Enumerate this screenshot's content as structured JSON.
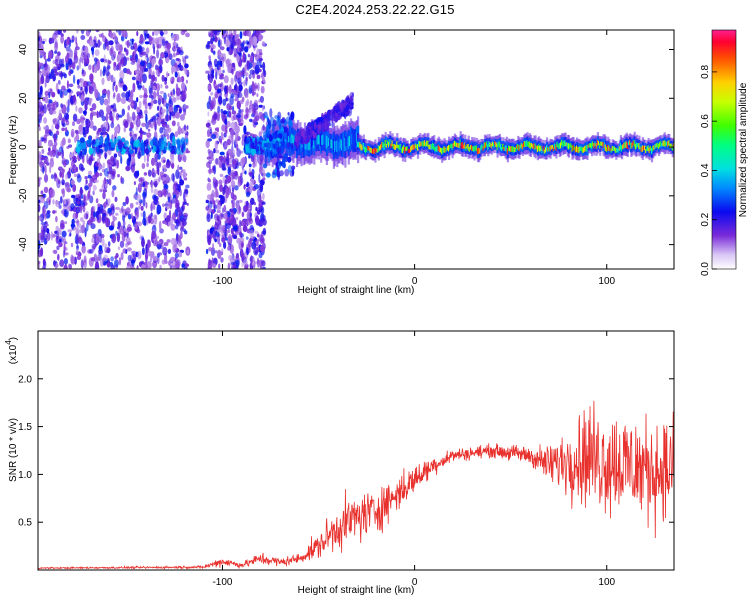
{
  "title": "C2E4.2024.253.22.22.G15",
  "chart_data": [
    {
      "type": "heatmap",
      "xlabel": "Height of straight line (km)",
      "ylabel": "Frequency (Hz)",
      "xlim": [
        -196,
        135
      ],
      "ylim": [
        -50,
        48
      ],
      "xticks": [
        -100,
        0,
        100
      ],
      "yticks": [
        -40,
        -20,
        0,
        20,
        40
      ],
      "colorbar": {
        "label": "Normalized spectral amplitude",
        "range": [
          0.0,
          0.97
        ],
        "ticks": [
          "0.0",
          "0.2",
          "0.4",
          "0.6",
          "0.8"
        ]
      },
      "regions": [
        {
          "x_range": [
            -196,
            -118
          ],
          "description_level": "scattered low amplitude noise, 0.1-0.25"
        },
        {
          "x_range": [
            -118,
            -108
          ],
          "description_level": "no signal"
        },
        {
          "x_range": [
            -108,
            -78
          ],
          "description_level": "dense low amplitude noise, 0.1-0.25"
        },
        {
          "x_range": [
            -78,
            -30
          ],
          "center_freq": 2,
          "band_halfwidth": 8,
          "peak_amplitude": 0.45
        },
        {
          "x_range": [
            -30,
            135
          ],
          "center_freq": 0,
          "band_halfwidth": 4,
          "peak_amplitude": 0.95
        }
      ]
    },
    {
      "type": "line",
      "xlabel": "Height of straight line (km)",
      "ylabel": "SNR (10 * v/v)",
      "multiplier": "(x10",
      "multiplier_exp": "4",
      "multiplier_close": ")",
      "xlim": [
        -196,
        135
      ],
      "ylim": [
        0,
        2.5
      ],
      "xticks": [
        -100,
        0,
        100
      ],
      "yticks": [
        0.5,
        1.0,
        1.5,
        2.0
      ],
      "ytick_labels": [
        "0.5",
        "1.0",
        "1.5",
        "2.0"
      ],
      "color": "#e8302c",
      "envelope": [
        {
          "x": -196,
          "mean": 0.02,
          "spread": 0.01
        },
        {
          "x": -110,
          "mean": 0.03,
          "spread": 0.02
        },
        {
          "x": -100,
          "mean": 0.09,
          "spread": 0.08
        },
        {
          "x": -90,
          "mean": 0.05,
          "spread": 0.04
        },
        {
          "x": -80,
          "mean": 0.12,
          "spread": 0.1
        },
        {
          "x": -70,
          "mean": 0.08,
          "spread": 0.07
        },
        {
          "x": -60,
          "mean": 0.12,
          "spread": 0.08
        },
        {
          "x": -50,
          "mean": 0.25,
          "spread": 0.2
        },
        {
          "x": -40,
          "mean": 0.45,
          "spread": 0.35
        },
        {
          "x": -30,
          "mean": 0.55,
          "spread": 0.4
        },
        {
          "x": -20,
          "mean": 0.62,
          "spread": 0.35
        },
        {
          "x": -10,
          "mean": 0.78,
          "spread": 0.3
        },
        {
          "x": 0,
          "mean": 0.95,
          "spread": 0.22
        },
        {
          "x": 10,
          "mean": 1.1,
          "spread": 0.15
        },
        {
          "x": 20,
          "mean": 1.2,
          "spread": 0.1
        },
        {
          "x": 40,
          "mean": 1.25,
          "spread": 0.1
        },
        {
          "x": 60,
          "mean": 1.2,
          "spread": 0.15
        },
        {
          "x": 70,
          "mean": 1.1,
          "spread": 0.3
        },
        {
          "x": 80,
          "mean": 1.15,
          "spread": 0.55
        },
        {
          "x": 90,
          "mean": 1.2,
          "spread": 0.8
        },
        {
          "x": 100,
          "mean": 1.15,
          "spread": 0.85
        },
        {
          "x": 110,
          "mean": 1.1,
          "spread": 0.85
        },
        {
          "x": 120,
          "mean": 1.05,
          "spread": 0.8
        },
        {
          "x": 135,
          "mean": 1.05,
          "spread": 0.75
        }
      ]
    }
  ]
}
